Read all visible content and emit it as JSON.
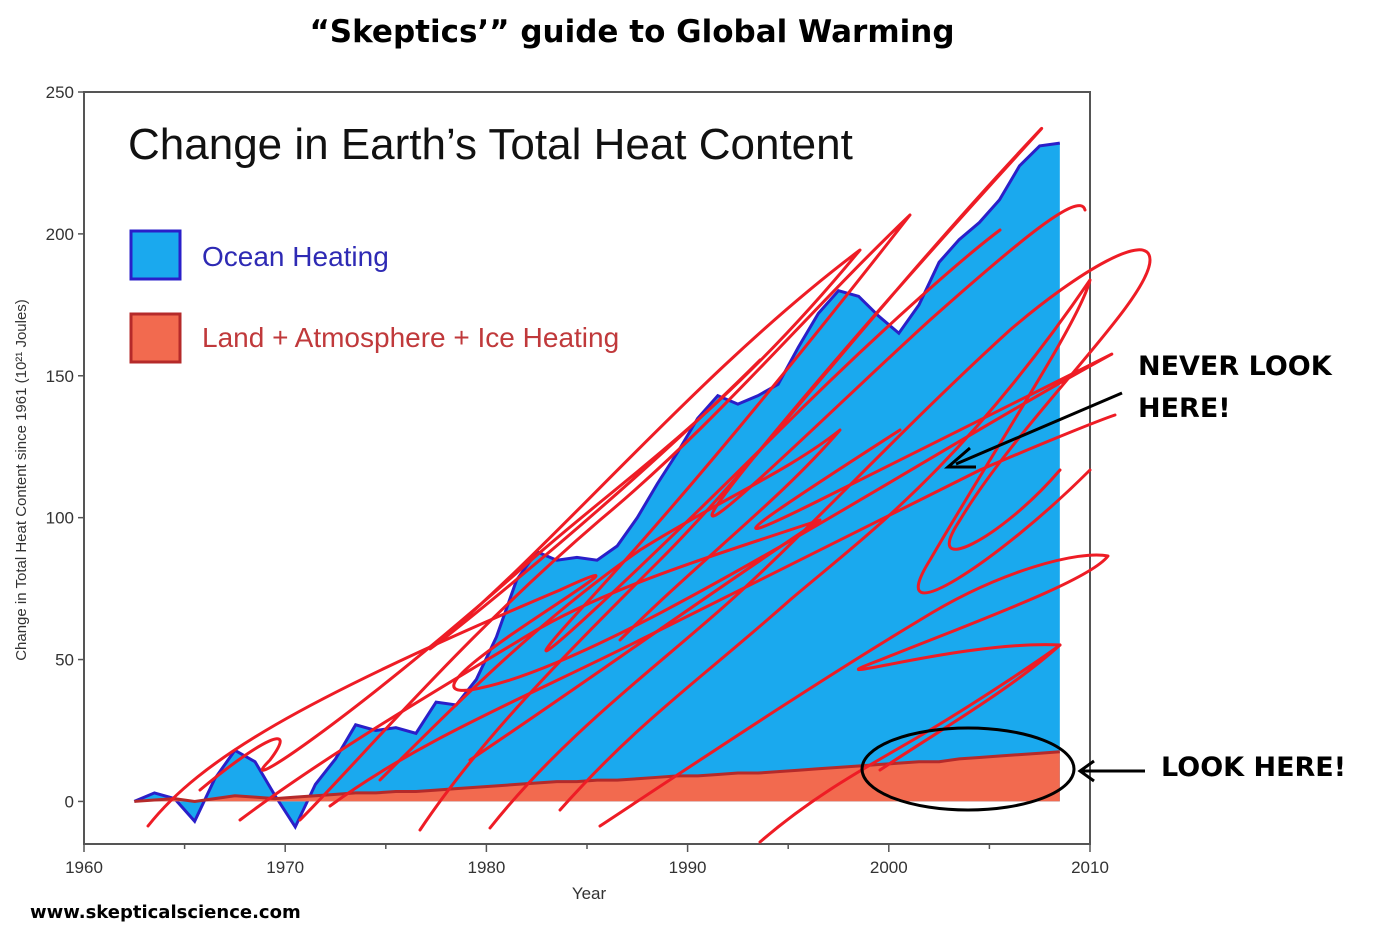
{
  "headline": "“Skeptics’” guide to Global Warming",
  "footer_url": "www.skepticalscience.com",
  "annotations": {
    "never_look": "NEVER LOOK HERE!",
    "look_here": "LOOK HERE!"
  },
  "colors": {
    "ocean_fill": "#1aa9ee",
    "ocean_line": "#2a1fc9",
    "land_fill": "#f26a4f",
    "land_line": "#b52a2a",
    "scribble": "#ee1c25",
    "legend_ocean_text": "#2e2ab4",
    "legend_land_text": "#c0393b"
  },
  "chart_data": {
    "type": "area",
    "title": "Change in Earth’s Total Heat Content",
    "xlabel": "Year",
    "ylabel": "Change in Total Heat Content since 1961 (10²¹ Joules)",
    "xlim": [
      1960,
      2010
    ],
    "ylim": [
      -15,
      250
    ],
    "x_ticks": [
      1960,
      1970,
      1980,
      1990,
      2000,
      2010
    ],
    "y_ticks": [
      0,
      50,
      100,
      150,
      200,
      250
    ],
    "legend": [
      "Ocean Heating",
      "Land + Atmosphere + Ice Heating"
    ],
    "legend_position": "top-left",
    "x": [
      1962.5,
      1963.5,
      1964.5,
      1965.5,
      1966.5,
      1967.5,
      1968.5,
      1969.5,
      1970.5,
      1971.5,
      1972.5,
      1973.5,
      1974.5,
      1975.5,
      1976.5,
      1977.5,
      1978.5,
      1979.5,
      1980.5,
      1981.5,
      1982.5,
      1983.5,
      1984.5,
      1985.5,
      1986.5,
      1987.5,
      1988.5,
      1989.5,
      1990.5,
      1991.5,
      1992.5,
      1993.5,
      1994.5,
      1995.5,
      1996.5,
      1997.5,
      1998.5,
      1999.5,
      2000.5,
      2001.5,
      2002.5,
      2003.5,
      2004.5,
      2005.5,
      2006.5,
      2007.5,
      2008.5
    ],
    "series": [
      {
        "name": "Ocean Heating",
        "stacked_total": [
          0,
          3,
          1,
          -7,
          8,
          18,
          14,
          2,
          -9,
          6,
          15,
          27,
          25,
          26,
          24,
          35,
          34,
          43,
          58,
          78,
          88,
          85,
          86,
          85,
          90,
          100,
          112,
          123,
          135,
          143,
          140,
          143,
          147,
          160,
          172,
          180,
          178,
          171,
          165,
          175,
          190,
          198,
          204,
          212,
          224,
          231,
          232
        ]
      },
      {
        "name": "Land + Atmosphere + Ice Heating",
        "values": [
          0,
          0.5,
          1,
          0,
          1,
          2,
          1.5,
          1,
          1.5,
          2,
          2.5,
          3,
          3,
          3.5,
          3.5,
          4,
          4.5,
          5,
          5.5,
          6,
          6.5,
          7,
          7,
          7.5,
          7.5,
          8,
          8.5,
          9,
          9,
          9.5,
          10,
          10,
          10.5,
          11,
          11.5,
          12,
          12.5,
          13,
          13.5,
          14,
          14,
          15,
          15.5,
          16,
          16.5,
          17,
          17.5
        ]
      }
    ]
  }
}
